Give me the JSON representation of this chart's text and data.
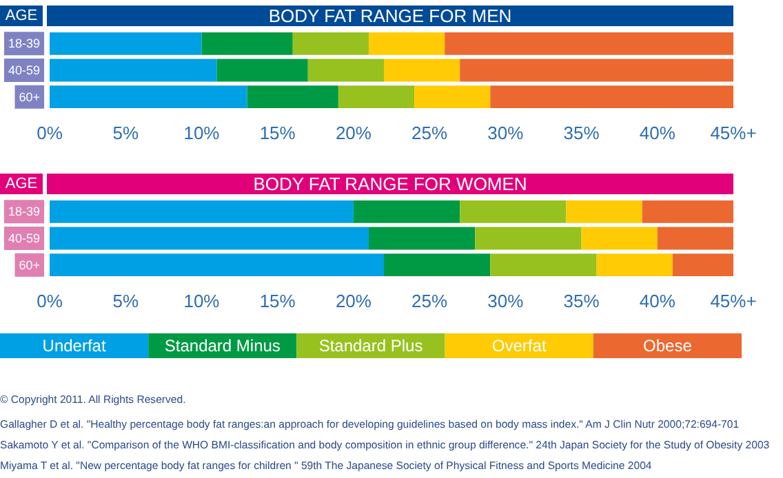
{
  "chart_data": [
    {
      "type": "bar",
      "title": "BODY FAT RANGE FOR MEN",
      "ylabel": "AGE",
      "orientation": "horizontal",
      "stacked": true,
      "categories": [
        "18-39",
        "40-59",
        "60+"
      ],
      "series": [
        {
          "color": "#00a0e4",
          "values": [
            10,
            11,
            13
          ]
        },
        {
          "color": "#009a44",
          "values": [
            6,
            6,
            6
          ]
        },
        {
          "color": "#97c11f",
          "values": [
            5,
            5,
            5
          ]
        },
        {
          "color": "#ffcb05",
          "values": [
            5,
            5,
            5
          ]
        },
        {
          "color": "#ec6831",
          "values": [
            19,
            18,
            16
          ]
        }
      ],
      "xlim": [
        0,
        45
      ],
      "xticks": [
        {
          "value": 0,
          "label": "0%"
        },
        {
          "value": 5,
          "label": "5%"
        },
        {
          "value": 10,
          "label": "10%"
        },
        {
          "value": 15,
          "label": "15%"
        },
        {
          "value": 20,
          "label": "20%"
        },
        {
          "value": 25,
          "label": "25%"
        },
        {
          "value": 30,
          "label": "30%"
        },
        {
          "value": 35,
          "label": "35%"
        },
        {
          "value": 40,
          "label": "40%"
        },
        {
          "value": 45,
          "label": "45%+"
        }
      ]
    },
    {
      "type": "bar",
      "title": "BODY FAT RANGE FOR WOMEN",
      "ylabel": "AGE",
      "orientation": "horizontal",
      "stacked": true,
      "categories": [
        "18-39",
        "40-59",
        "60+"
      ],
      "series": [
        {
          "name": "Underfat",
          "color": "#00a0e4",
          "values": [
            20,
            21,
            22
          ]
        },
        {
          "name": "Standard Minus",
          "color": "#009a44",
          "values": [
            7,
            7,
            7
          ]
        },
        {
          "name": "Standard Plus",
          "color": "#97c11f",
          "values": [
            7,
            7,
            7
          ]
        },
        {
          "name": "Overfat",
          "color": "#ffcb05",
          "values": [
            5,
            5,
            5
          ]
        },
        {
          "name": "Obese",
          "color": "#ec6831",
          "values": [
            6,
            5,
            4
          ]
        }
      ],
      "xlim": [
        0,
        45
      ],
      "xticks": [
        {
          "value": 0,
          "label": "0%"
        },
        {
          "value": 5,
          "label": "5%"
        },
        {
          "value": 10,
          "label": "10%"
        },
        {
          "value": 15,
          "label": "15%"
        },
        {
          "value": 20,
          "label": "20%"
        },
        {
          "value": 25,
          "label": "25%"
        },
        {
          "value": 30,
          "label": "30%"
        },
        {
          "value": 35,
          "label": "35%"
        },
        {
          "value": 40,
          "label": "40%"
        },
        {
          "value": 45,
          "label": "45%+"
        }
      ],
      "legend": "bottom",
      "annotations": [
        "© Copyright 2011. All Rights Reserved.",
        "Gallagher D et al. \"Healthy percentage body fat ranges:an approach for developing guidelines based on body mass index.\" Am J Clin Nutr 2000;72:694-701",
        "Sakamoto Y et al. \"Comparison of the WHO BMI-classification and body composition in ethnic group difference.\" 24th Japan Society for the Study of Obesity 2003",
        "Miyama T et al. \"New percentage body fat ranges for children \" 59th The Japanese Society of Physical Fitness and Sports Medicine 2004"
      ]
    }
  ]
}
